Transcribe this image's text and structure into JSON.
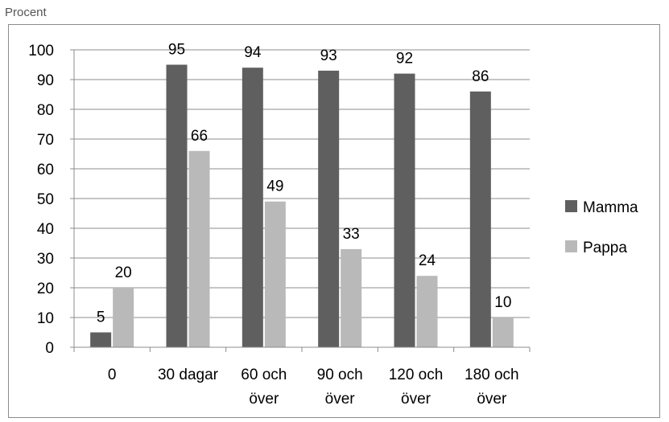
{
  "chart_data": {
    "type": "bar",
    "ylabel": "Procent",
    "ylim": [
      0,
      100
    ],
    "yticks": [
      0,
      10,
      20,
      30,
      40,
      50,
      60,
      70,
      80,
      90,
      100
    ],
    "grid": true,
    "legend_position": "right",
    "categories": [
      [
        "0"
      ],
      [
        "30 dagar"
      ],
      [
        "60 och",
        "över"
      ],
      [
        "90 och",
        "över"
      ],
      [
        "120 och",
        "över"
      ],
      [
        "180 och",
        "över"
      ]
    ],
    "series": [
      {
        "name": "Mamma",
        "color": "#5f5f5f",
        "values": [
          5,
          95,
          94,
          93,
          92,
          86
        ]
      },
      {
        "name": "Pappa",
        "color": "#b9b9b9",
        "values": [
          20,
          66,
          49,
          33,
          24,
          10
        ]
      }
    ]
  }
}
